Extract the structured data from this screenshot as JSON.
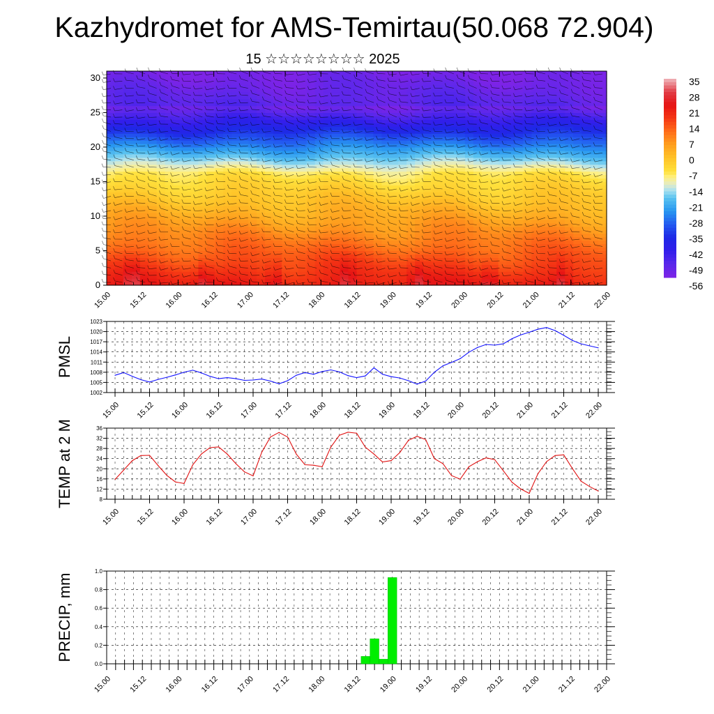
{
  "title": "Kazhydromet for AMS-Temirtau(50.068 72.904)",
  "subtitle": "15 ☆☆☆☆☆☆☆☆ 2025",
  "colors": {
    "pmsl_line": "#1010ff",
    "temp_line": "#e01010",
    "precip_bar": "#00ee00",
    "gridline": "#000000"
  },
  "chart_data": [
    {
      "type": "heatmap",
      "x_ticks": [
        "15.00",
        "15.12",
        "16.00",
        "16.12",
        "17.00",
        "17.12",
        "18.00",
        "18.12",
        "19.00",
        "19.12",
        "20.00",
        "20.12",
        "21.00",
        "21.12",
        "22.00"
      ],
      "y_ticks": [
        "0",
        "5",
        "10",
        "15",
        "20",
        "25",
        "30"
      ],
      "ylim": [
        0,
        31
      ],
      "colorbar": {
        "labels": [
          "35",
          "28",
          "21",
          "14",
          "7",
          "0",
          "-7",
          "-14",
          "-21",
          "-28",
          "-35",
          "-42",
          "-49",
          "-56"
        ],
        "range": [
          -63,
          42
        ]
      },
      "overlay": "wind barbs"
    },
    {
      "type": "line",
      "ylabel": "PMSL",
      "y_ticks": [
        "1023",
        "1020",
        "1017",
        "1014",
        "1011",
        "1008",
        "1005",
        "1002"
      ],
      "ylim": [
        1002,
        1023
      ],
      "x_ticks": [
        "15.00",
        "15.12",
        "16.00",
        "16.12",
        "17.00",
        "17.12",
        "18.00",
        "18.12",
        "19.00",
        "19.12",
        "20.00",
        "20.12",
        "21.00",
        "21.12",
        "22.00"
      ],
      "x": [
        0,
        3,
        6,
        9,
        12,
        15,
        18,
        21,
        24,
        27,
        30,
        33,
        36,
        39,
        42,
        45,
        48,
        51,
        54,
        57,
        60,
        63,
        66,
        69,
        72,
        75,
        78,
        81,
        84,
        87,
        90,
        93,
        96,
        99,
        102,
        105,
        108,
        111,
        114,
        117,
        120,
        123,
        126,
        129,
        132,
        135,
        138,
        141,
        144,
        147,
        150,
        153,
        156,
        159,
        162,
        165,
        168
      ],
      "values": [
        1007.1,
        1007.9,
        1006.8,
        1005.8,
        1005.1,
        1005.9,
        1006.5,
        1007.2,
        1008.0,
        1008.6,
        1007.8,
        1006.8,
        1006.1,
        1006.4,
        1006.1,
        1005.6,
        1005.7,
        1006.0,
        1005.4,
        1004.6,
        1005.5,
        1007.1,
        1007.9,
        1007.4,
        1008.2,
        1008.7,
        1008.1,
        1007.0,
        1006.4,
        1006.9,
        1009.3,
        1007.4,
        1006.7,
        1006.3,
        1005.5,
        1004.5,
        1005.4,
        1008.0,
        1009.9,
        1010.9,
        1012.0,
        1013.9,
        1015.3,
        1016.2,
        1016.0,
        1016.4,
        1017.9,
        1019.0,
        1019.8,
        1020.7,
        1021.2,
        1020.3,
        1018.9,
        1017.4,
        1016.4,
        1015.8,
        1015.2
      ]
    },
    {
      "type": "line",
      "ylabel": "TEMP at 2 M",
      "y_ticks": [
        "36",
        "32",
        "28",
        "24",
        "20",
        "16",
        "12",
        "8"
      ],
      "ylim": [
        8,
        36
      ],
      "x_ticks": [
        "15.00",
        "15.12",
        "16.00",
        "16.12",
        "17.00",
        "17.12",
        "18.00",
        "18.12",
        "19.00",
        "19.12",
        "20.00",
        "20.12",
        "21.00",
        "21.12",
        "22.00"
      ],
      "x": [
        0,
        3,
        6,
        9,
        12,
        15,
        18,
        21,
        24,
        27,
        30,
        33,
        36,
        39,
        42,
        45,
        48,
        51,
        54,
        57,
        60,
        63,
        66,
        69,
        72,
        75,
        78,
        81,
        84,
        87,
        90,
        93,
        96,
        99,
        102,
        105,
        108,
        111,
        114,
        117,
        120,
        123,
        126,
        129,
        132,
        135,
        138,
        141,
        144,
        147,
        150,
        153,
        156,
        159,
        162,
        165,
        168
      ],
      "values": [
        15.8,
        19.5,
        23.2,
        25.2,
        25.3,
        21.2,
        17.4,
        14.8,
        14.2,
        21.5,
        25.8,
        28.3,
        28.6,
        25.8,
        22.0,
        18.8,
        17.2,
        26.5,
        32.5,
        34.3,
        32.5,
        25.8,
        21.6,
        21.4,
        20.8,
        28.5,
        33.2,
        34.4,
        34.0,
        28.5,
        25.8,
        22.7,
        23.2,
        26.4,
        31.2,
        32.8,
        31.5,
        24.0,
        22.0,
        17.3,
        15.9,
        20.8,
        22.8,
        24.3,
        23.6,
        19.2,
        14.7,
        12.1,
        10.3,
        18.0,
        22.8,
        25.2,
        25.5,
        20.1,
        15.1,
        13.0,
        11.2
      ]
    },
    {
      "type": "bar",
      "ylabel": "PRECIP, mm",
      "y_ticks": [
        "1.0",
        "0.8",
        "0.6",
        "0.4",
        "0.2",
        "0.0"
      ],
      "ylim": [
        0,
        1
      ],
      "x_ticks": [
        "15.00",
        "15.12",
        "16.00",
        "16.12",
        "17.00",
        "17.12",
        "18.00",
        "18.12",
        "19.00",
        "19.12",
        "20.00",
        "20.12",
        "21.00",
        "21.12",
        "22.00"
      ],
      "x": [
        84,
        87,
        90,
        93
      ],
      "values": [
        0.08,
        0.27,
        0.05,
        0.93
      ]
    }
  ]
}
